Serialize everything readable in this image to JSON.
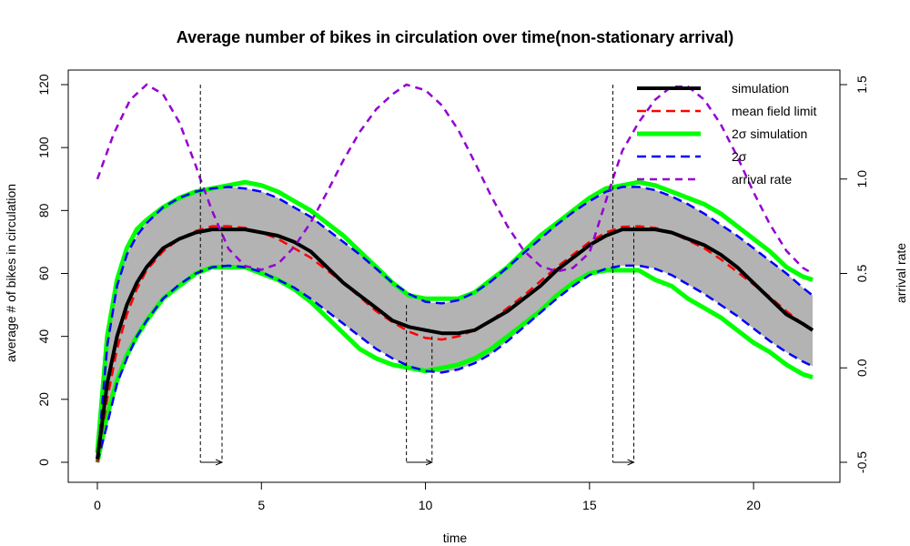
{
  "chart_data": {
    "type": "line",
    "title": "Average number of bikes in circulation over time(non-stationary arrival)",
    "xlabel": "time",
    "ylabel": "average # of bikes in circulation",
    "ylabel_right": "arrival rate",
    "xlim": [
      0,
      21.8
    ],
    "ylim": [
      0,
      120
    ],
    "ylim_right": [
      -0.5,
      1.5
    ],
    "x_ticks": [
      0,
      5,
      10,
      15,
      20
    ],
    "y_ticks": [
      0,
      20,
      40,
      60,
      80,
      100,
      120
    ],
    "y_ticks_right": [
      -0.5,
      0.0,
      0.5,
      1.0,
      1.5
    ],
    "x_tick_labels": [
      "0",
      "5",
      "10",
      "15",
      "20"
    ],
    "y_tick_labels": [
      "0",
      "20",
      "40",
      "60",
      "80",
      "100",
      "120"
    ],
    "y_tick_labels_right": [
      "-0.5",
      "0.0",
      "0.5",
      "1.0",
      "1.5"
    ],
    "legend_position": "top-right",
    "legend": [
      "simulation",
      "mean field limit",
      "2σ simulation",
      "2σ",
      "arrival rate"
    ],
    "colors": {
      "simulation": "#000000",
      "mean_field": "#ff0000",
      "sim_band": "#00ff00",
      "analytic_band": "#0000ff",
      "arrival": "#9400d3",
      "fill": "#b3b3b3"
    },
    "series": [
      {
        "name": "simulation",
        "x": [
          0,
          0.3,
          0.6,
          0.9,
          1.2,
          1.5,
          2,
          2.5,
          3,
          3.5,
          4,
          4.5,
          5,
          5.5,
          6,
          6.5,
          7,
          7.5,
          8,
          8.5,
          9,
          9.5,
          10,
          10.5,
          11,
          11.5,
          12,
          12.5,
          13,
          13.5,
          14,
          14.5,
          15,
          15.5,
          16,
          16.5,
          17,
          17.5,
          18,
          18.5,
          19,
          19.5,
          20,
          20.5,
          21,
          21.5,
          21.8
        ],
        "values": [
          1,
          25,
          40,
          50,
          57,
          62,
          68,
          71,
          73,
          74,
          74,
          74,
          73,
          72,
          70,
          67,
          62,
          57,
          53,
          49,
          45,
          43,
          42,
          41,
          41,
          42,
          45,
          48,
          52,
          56,
          61,
          65,
          69,
          72,
          74,
          74,
          74,
          73,
          71,
          69,
          66,
          62,
          57,
          52,
          47,
          44,
          42
        ]
      },
      {
        "name": "mean field limit",
        "x": [
          0,
          0.3,
          0.6,
          0.9,
          1.2,
          1.5,
          2,
          2.5,
          3,
          3.5,
          4,
          4.5,
          5,
          5.5,
          6,
          6.5,
          7,
          7.5,
          8,
          8.5,
          9,
          9.5,
          10,
          10.5,
          11,
          11.5,
          12,
          12.5,
          13,
          13.5,
          14,
          14.5,
          15,
          15.5,
          16,
          16.5,
          17,
          17.5,
          18,
          18.5,
          19,
          19.5,
          20,
          20.5,
          21,
          21.5,
          21.8
        ],
        "values": [
          0,
          20,
          36,
          47,
          55,
          61,
          67,
          71,
          73.5,
          75,
          75,
          74.5,
          73,
          71,
          68,
          65,
          61,
          57,
          52.5,
          48,
          44.5,
          41.5,
          39.5,
          39,
          40,
          42,
          45,
          49,
          53,
          57.5,
          62,
          66,
          70,
          73,
          74.8,
          75,
          74.5,
          73,
          70.5,
          68,
          64.5,
          60.5,
          56.5,
          52.5,
          48,
          44,
          42
        ]
      },
      {
        "name": "2σ simulation upper",
        "x": [
          0,
          0.3,
          0.6,
          0.9,
          1.2,
          1.5,
          2,
          2.5,
          3,
          3.5,
          4,
          4.5,
          5,
          5.5,
          6,
          6.5,
          7,
          7.5,
          8,
          8.5,
          9,
          9.5,
          10,
          10.5,
          11,
          11.5,
          12,
          12.5,
          13,
          13.5,
          14,
          14.5,
          15,
          15.5,
          16,
          16.5,
          17,
          17.5,
          18,
          18.5,
          19,
          19.5,
          20,
          20.5,
          21,
          21.5,
          21.8
        ],
        "values": [
          3,
          40,
          58,
          68,
          74,
          77,
          81,
          84,
          86,
          87,
          88,
          89,
          88,
          86,
          83,
          80,
          76,
          72,
          67,
          62,
          57,
          53,
          52,
          52,
          52,
          54,
          58,
          62,
          67,
          72,
          76,
          80,
          84,
          87,
          88,
          89,
          88,
          86,
          84,
          82,
          79,
          75,
          71,
          67,
          62,
          59,
          58
        ]
      },
      {
        "name": "2σ simulation lower",
        "x": [
          0,
          0.3,
          0.6,
          0.9,
          1.2,
          1.5,
          2,
          2.5,
          3,
          3.5,
          4,
          4.5,
          5,
          5.5,
          6,
          6.5,
          7,
          7.5,
          8,
          8.5,
          9,
          9.5,
          10,
          10.5,
          11,
          11.5,
          12,
          12.5,
          13,
          13.5,
          14,
          14.5,
          15,
          15.5,
          16,
          16.5,
          17,
          17.5,
          18,
          18.5,
          19,
          19.5,
          20,
          20.5,
          21,
          21.5,
          21.8
        ],
        "values": [
          0,
          15,
          26,
          34,
          40,
          45,
          52,
          56,
          60,
          62,
          62,
          62,
          60,
          58,
          55,
          51,
          46,
          41,
          36,
          33,
          31,
          30,
          29,
          30,
          31,
          33,
          36,
          40,
          44,
          48,
          53,
          57,
          60,
          61,
          61,
          61,
          58,
          56,
          52,
          49,
          46,
          42,
          38,
          35,
          31,
          28,
          27
        ]
      },
      {
        "name": "2σ upper",
        "x": [
          0,
          0.3,
          0.6,
          0.9,
          1.2,
          1.5,
          2,
          2.5,
          3,
          3.5,
          4,
          4.5,
          5,
          5.5,
          6,
          6.5,
          7,
          7.5,
          8,
          8.5,
          9,
          9.5,
          10,
          10.5,
          11,
          11.5,
          12,
          12.5,
          13,
          13.5,
          14,
          14.5,
          15,
          15.5,
          16,
          16.5,
          17,
          17.5,
          18,
          18.5,
          19,
          19.5,
          20,
          20.5,
          21,
          21.5,
          21.8
        ],
        "values": [
          0,
          37,
          56,
          66,
          72,
          76,
          81,
          84,
          86,
          87,
          87.5,
          87,
          86,
          84,
          81,
          78,
          74,
          70,
          66,
          61.5,
          57,
          53.5,
          51,
          50.5,
          51.5,
          54,
          57.5,
          62,
          66.5,
          71,
          75.5,
          79.5,
          83,
          86,
          87.5,
          87.5,
          86.5,
          84.5,
          82,
          79,
          75.5,
          72,
          68,
          64,
          60,
          55.5,
          53
        ]
      },
      {
        "name": "2σ lower",
        "x": [
          0,
          0.3,
          0.6,
          0.9,
          1.2,
          1.5,
          2,
          2.5,
          3,
          3.5,
          4,
          4.5,
          5,
          5.5,
          6,
          6.5,
          7,
          7.5,
          8,
          8.5,
          9,
          9.5,
          10,
          10.5,
          11,
          11.5,
          12,
          12.5,
          13,
          13.5,
          14,
          14.5,
          15,
          15.5,
          16,
          16.5,
          17,
          17.5,
          18,
          18.5,
          19,
          19.5,
          20,
          20.5,
          21,
          21.5,
          21.8
        ],
        "values": [
          0,
          12,
          25,
          33,
          40,
          45,
          52,
          56.5,
          60,
          62,
          62.5,
          62,
          60.5,
          58,
          55.5,
          52,
          48,
          44,
          40,
          36,
          33,
          30.5,
          29,
          28.5,
          29.5,
          31.5,
          34.5,
          38.5,
          43,
          47.5,
          52,
          56,
          59.5,
          61.5,
          62.5,
          62.5,
          61.5,
          59.5,
          56.5,
          53.5,
          50,
          46.5,
          42.5,
          38.5,
          35,
          32,
          30.5
        ]
      },
      {
        "name": "arrival rate",
        "axis": "right",
        "x": [
          0,
          0.5,
          1,
          1.5,
          2,
          2.5,
          3,
          3.14,
          3.5,
          4,
          4.5,
          5,
          5.5,
          6,
          6.5,
          7,
          7.5,
          8,
          8.5,
          9,
          9.42,
          10,
          10.5,
          11,
          11.5,
          12,
          12.5,
          13,
          13.5,
          14,
          14.5,
          15,
          15.71,
          16,
          16.5,
          17,
          17.5,
          18,
          18.5,
          19,
          19.5,
          20,
          20.5,
          21,
          21.5,
          21.8
        ],
        "values": [
          1.0,
          1.24,
          1.42,
          1.5,
          1.45,
          1.3,
          1.07,
          1.0,
          0.83,
          0.63,
          0.54,
          0.52,
          0.55,
          0.64,
          0.77,
          0.93,
          1.1,
          1.25,
          1.37,
          1.45,
          1.5,
          1.47,
          1.39,
          1.26,
          1.09,
          0.91,
          0.75,
          0.62,
          0.54,
          0.51,
          0.53,
          0.61,
          1.0,
          1.15,
          1.3,
          1.42,
          1.49,
          1.49,
          1.42,
          1.29,
          1.12,
          0.93,
          0.76,
          0.62,
          0.53,
          0.5
        ]
      }
    ],
    "annotations": [
      {
        "type": "vline_pair",
        "x": [
          3.14,
          3.8
        ],
        "y_top_left": 120,
        "y_top_right": 75
      },
      {
        "type": "vline_pair",
        "x": [
          9.42,
          10.2
        ],
        "y_top_left": 50,
        "y_top_right": 40
      },
      {
        "type": "vline_pair",
        "x": [
          15.71,
          16.35
        ],
        "y_top_left": 120,
        "y_top_right": 75
      }
    ]
  }
}
